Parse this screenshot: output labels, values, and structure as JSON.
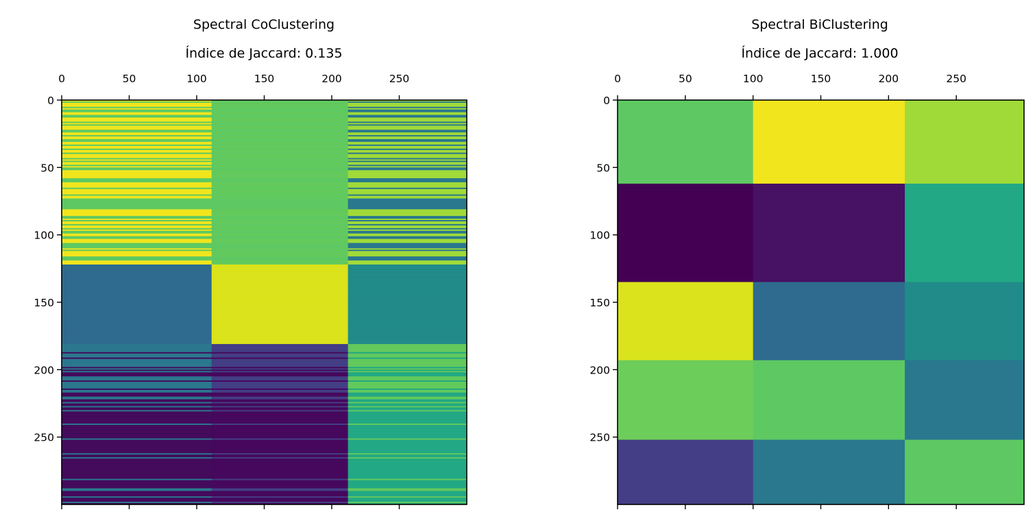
{
  "chart_data": [
    {
      "type": "heatmap",
      "title": "Spectral CoClustering",
      "subtitle": "Índice de Jaccard: 0.135",
      "jaccard_index": 0.135,
      "colormap": "viridis",
      "xlabel": "",
      "ylabel": "",
      "xlim": [
        0,
        300
      ],
      "ylim": [
        300,
        0
      ],
      "x_ticks": [
        0,
        50,
        100,
        150,
        200,
        250
      ],
      "y_ticks": [
        0,
        50,
        100,
        150,
        200,
        250
      ],
      "x_tick_labels": [
        "0",
        "50",
        "100",
        "150",
        "200",
        "250"
      ],
      "y_tick_labels": [
        "0",
        "50",
        "100",
        "150",
        "200",
        "250"
      ],
      "x_tick_position": "top",
      "col_boundaries": [
        0,
        111,
        212,
        300
      ],
      "row_bands": [
        {
          "range": [
            0,
            122
          ],
          "colors": [
            "striped yellow/green",
            "#63c95c",
            "striped teal/lime"
          ],
          "striped": true
        },
        {
          "range": [
            122,
            181
          ],
          "colors": [
            "#2f6b8e",
            "#dae31b",
            "#218b89"
          ],
          "striped": false
        },
        {
          "range": [
            181,
            300
          ],
          "colors": [
            "striped teal/purple",
            "#46085c",
            "striped green/teal"
          ],
          "striped": true
        }
      ]
    },
    {
      "type": "heatmap",
      "title": "Spectral BiClustering",
      "subtitle": "Índice de Jaccard: 1.000",
      "jaccard_index": 1.0,
      "colormap": "viridis",
      "xlabel": "",
      "ylabel": "",
      "xlim": [
        0,
        300
      ],
      "ylim": [
        300,
        0
      ],
      "x_ticks": [
        0,
        50,
        100,
        150,
        200,
        250
      ],
      "y_ticks": [
        0,
        50,
        100,
        150,
        200,
        250
      ],
      "x_tick_labels": [
        "0",
        "50",
        "100",
        "150",
        "200",
        "250"
      ],
      "y_tick_labels": [
        "0",
        "50",
        "100",
        "150",
        "200",
        "250"
      ],
      "x_tick_position": "top",
      "col_boundaries": [
        0,
        100,
        212,
        300
      ],
      "row_boundaries": [
        0,
        62,
        135,
        193,
        252,
        300
      ],
      "cells": [
        [
          "#5ec962",
          "#f1e51d",
          "#a0da39"
        ],
        [
          "#440154",
          "#471164",
          "#22a884"
        ],
        [
          "#dae31b",
          "#2f6b8e",
          "#218b89"
        ],
        [
          "#6ccd5a",
          "#5ec962",
          "#29788e"
        ],
        [
          "#433e85",
          "#2a788e",
          "#5ec962"
        ]
      ]
    }
  ]
}
